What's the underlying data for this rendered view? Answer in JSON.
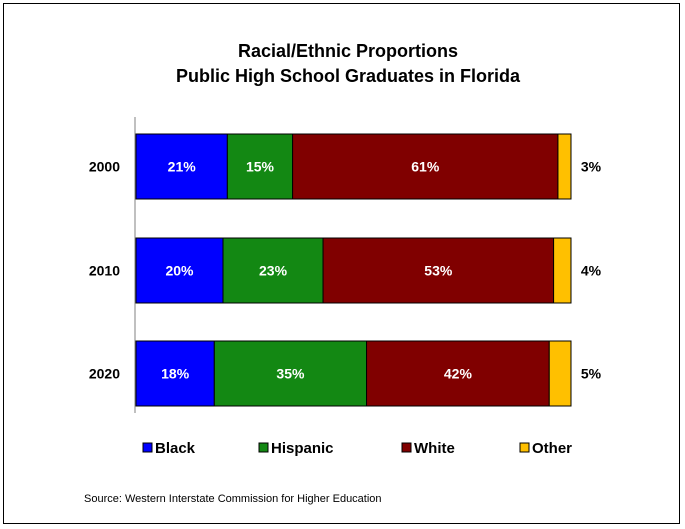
{
  "chart_data": {
    "type": "bar",
    "orientation": "horizontal",
    "stacked": true,
    "normalized": true,
    "title": [
      "Racial/Ethnic Proportions",
      "Public High School Graduates in Florida"
    ],
    "categories": [
      "2000",
      "2010",
      "2020"
    ],
    "series": [
      {
        "name": "Black",
        "color": "#0000FF",
        "values": [
          21,
          20,
          18
        ],
        "labels": [
          "21%",
          "20%",
          "18%"
        ]
      },
      {
        "name": "Hispanic",
        "color": "#138813",
        "values": [
          15,
          23,
          35
        ],
        "labels": [
          "15%",
          "23%",
          "35%"
        ]
      },
      {
        "name": "White",
        "color": "#800000",
        "values": [
          61,
          53,
          42
        ],
        "labels": [
          "61%",
          "53%",
          "42%"
        ]
      },
      {
        "name": "Other",
        "color": "#FFC000",
        "values": [
          3,
          4,
          5
        ],
        "labels": [
          "3%",
          "4%",
          "5%"
        ]
      }
    ],
    "legend_position": "bottom",
    "grid": false
  },
  "source": "Source: Western Interstate Commission for Higher Education"
}
